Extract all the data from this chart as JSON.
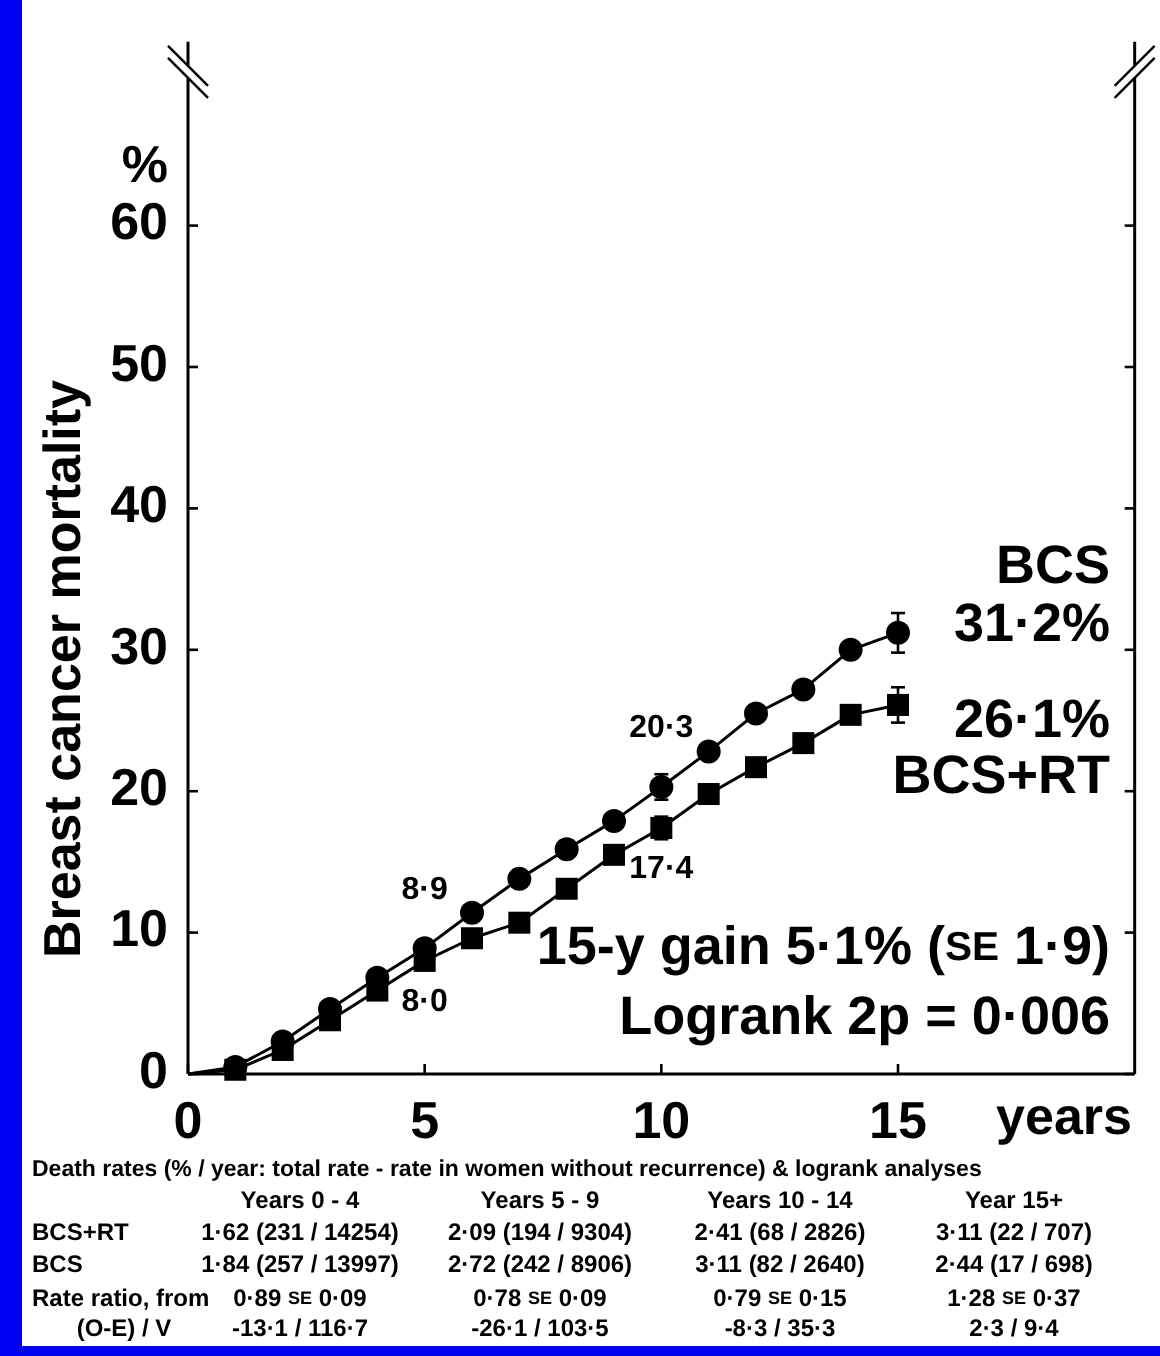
{
  "chart_data": {
    "type": "line",
    "ylabel": "Breast cancer mortality",
    "xlabel": "years",
    "x": [
      0,
      1,
      2,
      3,
      4,
      5,
      6,
      7,
      8,
      9,
      10,
      11,
      12,
      13,
      14,
      15
    ],
    "xlim": [
      0,
      20
    ],
    "xticks": [
      0,
      5,
      10,
      15
    ],
    "ylim": [
      0,
      73
    ],
    "yticks": [
      0,
      10,
      20,
      30,
      40,
      50,
      60
    ],
    "grid": false,
    "legend": "right",
    "line_style": "solid",
    "series": [
      {
        "name": "BCS",
        "color": "#000000",
        "marker": "circle",
        "values": [
          0,
          0.5,
          2.3,
          4.6,
          6.8,
          8.9,
          11.4,
          13.8,
          15.9,
          17.9,
          20.3,
          22.8,
          25.5,
          27.2,
          30.0,
          31.2
        ],
        "errors": [
          null,
          null,
          null,
          null,
          null,
          null,
          null,
          null,
          null,
          null,
          0.9,
          null,
          null,
          null,
          null,
          1.4
        ],
        "value_labels": [
          null,
          null,
          null,
          null,
          null,
          "8·9",
          null,
          null,
          null,
          null,
          "20·3",
          null,
          null,
          null,
          null,
          "31·2%"
        ]
      },
      {
        "name": "BCS+RT",
        "color": "#000000",
        "marker": "square",
        "values": [
          0,
          0.3,
          1.7,
          3.8,
          5.9,
          8.0,
          9.6,
          10.7,
          13.1,
          15.5,
          17.4,
          19.8,
          21.7,
          23.4,
          25.4,
          26.1
        ],
        "errors": [
          null,
          null,
          null,
          null,
          null,
          null,
          null,
          null,
          null,
          null,
          0.8,
          null,
          null,
          null,
          null,
          1.25
        ],
        "value_labels": [
          null,
          null,
          null,
          null,
          null,
          "8·0",
          null,
          null,
          null,
          null,
          "17·4",
          null,
          null,
          null,
          null,
          "26·1%"
        ]
      }
    ],
    "annotations": [
      "%",
      "15-y gain 5·1% (SE 1·9)",
      "Logrank 2p = 0·006",
      "Death rates (% / year: total rate - rate in women without recurrence) & logrank analyses",
      "Years 0 - 4",
      "Years 5 - 9",
      "Years 10 - 14",
      "Year 15+",
      "BCS+RT",
      "1·62 (231 / 14254)",
      "2·09 (194 / 9304)",
      "2·41 (68 / 2826)",
      "3·11 (22 / 707)",
      "BCS",
      "1·84 (257 / 13997)",
      "2·72 (242 / 8906)",
      "3·11 (82 / 2640)",
      "2·44 (17 / 698)",
      "Rate ratio, from",
      "0·89 SE 0·09",
      "0·78 SE 0·09",
      "0·79 SE 0·15",
      "1·28 SE 0·37",
      "(O-E) / V",
      "-13·1 / 116·7",
      "-26·1 / 103·5",
      "-8·3 / 35·3",
      "2·3 / 9·4"
    ]
  }
}
